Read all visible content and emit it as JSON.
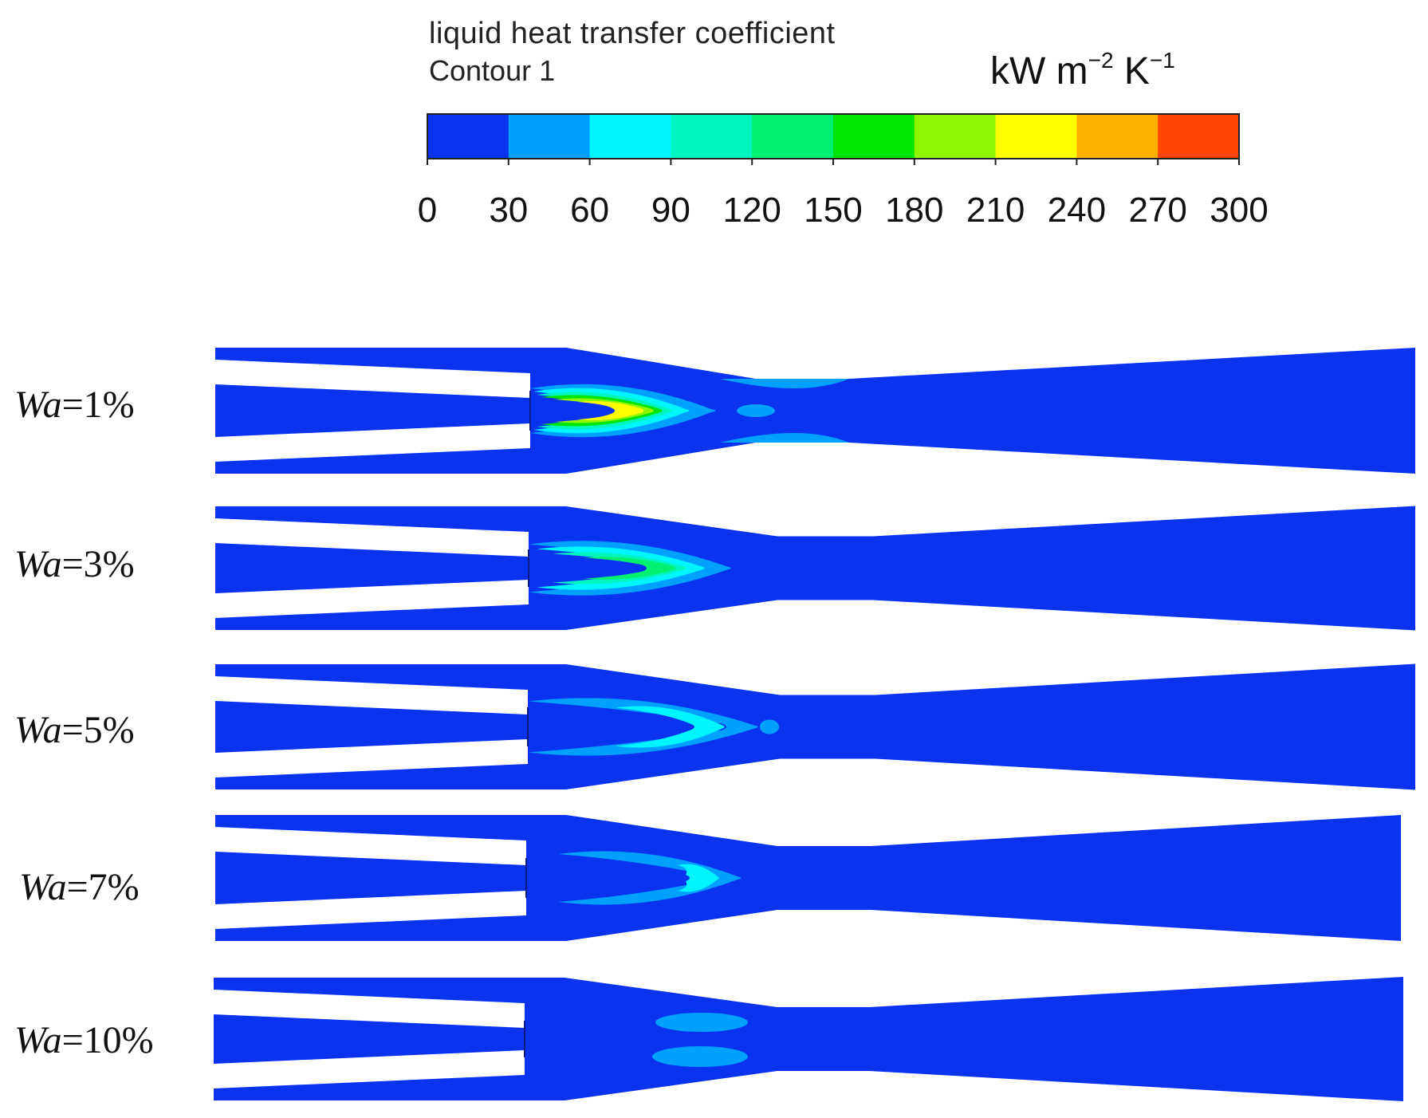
{
  "legend": {
    "title": "liquid heat transfer coefficient",
    "subtitle": "Contour 1",
    "unit_base": "kW m",
    "unit_exp1": "−2",
    "unit_mid": " K",
    "unit_exp2": "−1",
    "ticks": [
      "0",
      "30",
      "60",
      "90",
      "120",
      "150",
      "180",
      "210",
      "240",
      "270",
      "300"
    ],
    "colors": [
      "#0a33f0",
      "#00a0ff",
      "#00f5ff",
      "#00f5c0",
      "#00f070",
      "#00e600",
      "#90f500",
      "#ffff00",
      "#ffb000",
      "#ff4500"
    ]
  },
  "panels": [
    {
      "var": "Wa",
      "value": "=1%"
    },
    {
      "var": "Wa",
      "value": "=3%"
    },
    {
      "var": "Wa",
      "value": "=5%"
    },
    {
      "var": "Wa",
      "value": "=7%"
    },
    {
      "var": "Wa",
      "value": "=10%"
    }
  ]
}
